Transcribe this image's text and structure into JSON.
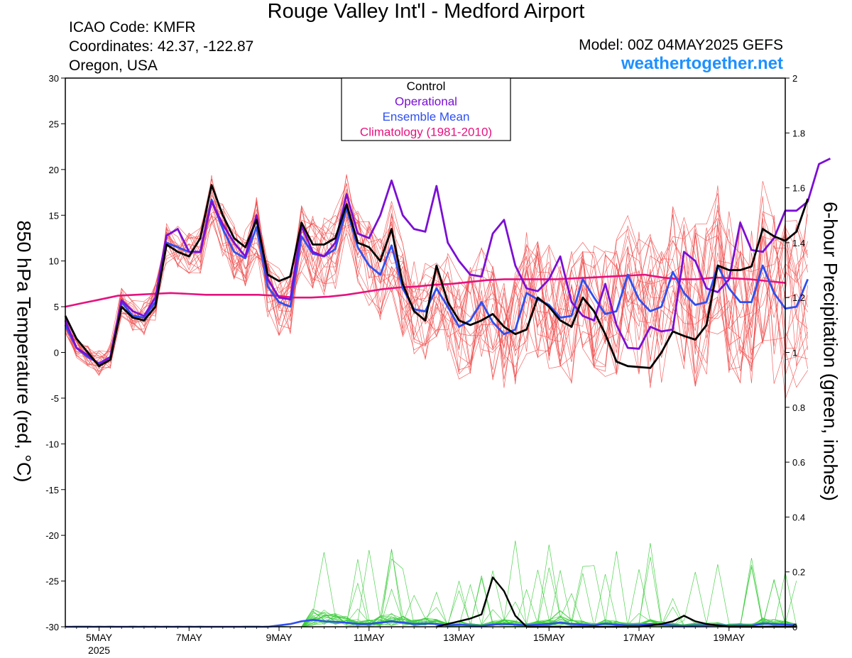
{
  "header": {
    "title": "Rouge Valley Int'l - Medford Airport",
    "icao": "ICAO Code: KMFR",
    "coordinates": "Coordinates: 42.37, -122.87",
    "region": "Oregon, USA",
    "model": "Model: 00Z 04MAY2025 GEFS",
    "site": "weathertogether.net"
  },
  "chart_data": {
    "type": "line",
    "title": "Rouge Valley Int'l - Medford Airport",
    "ylabel_left": "850 hPa Temperature (red, °C)",
    "ylabel_right": "6-hour Precipitation (green, inches)",
    "x_range_hours": [
      0,
      384
    ],
    "x_ticks": [
      {
        "label": "5MAY",
        "hour": 18
      },
      {
        "label": "7MAY",
        "hour": 66
      },
      {
        "label": "9MAY",
        "hour": 114
      },
      {
        "label": "11MAY",
        "hour": 162
      },
      {
        "label": "13MAY",
        "hour": 210
      },
      {
        "label": "15MAY",
        "hour": 258
      },
      {
        "label": "17MAY",
        "hour": 306
      },
      {
        "label": "19MAY",
        "hour": 354
      }
    ],
    "x_year_label": {
      "label": "2025",
      "hour": 18
    },
    "ylim_left": [
      -30,
      30
    ],
    "yticks_left": [
      30,
      25,
      20,
      15,
      10,
      5,
      0,
      -5,
      -10,
      -15,
      -20,
      -25,
      -30
    ],
    "ylim_right": [
      0,
      2
    ],
    "yticks_right": [
      "2",
      "1.8",
      "1.6",
      "1.4",
      "1.2",
      "1",
      "0.8",
      "0.6",
      "0.4",
      "0.2",
      "0"
    ],
    "legend": {
      "position": "top-center",
      "entries": [
        {
          "label": "Control",
          "color": "#000000"
        },
        {
          "label": "Operational",
          "color": "#7b0fd4"
        },
        {
          "label": "Ensemble Mean",
          "color": "#2e4ff0"
        },
        {
          "label": "Climatology (1981-2010)",
          "color": "#e5127e"
        }
      ]
    },
    "step_hours": 6,
    "temperature": {
      "control": [
        4,
        1.5,
        0,
        -1.5,
        -0.8,
        5,
        3.8,
        3.5,
        5,
        11.8,
        11,
        10.5,
        12.5,
        18.3,
        15,
        12.5,
        11.5,
        14.5,
        8.5,
        7.8,
        8.3,
        14.2,
        11.8,
        11.8,
        12.5,
        16.2,
        12,
        11.5,
        10,
        13.5,
        7.5,
        4.5,
        3.5,
        9.5,
        5.5,
        3.5,
        3,
        3.5,
        4.2,
        2.8,
        2,
        2.5,
        6,
        5,
        3.5,
        2.8,
        6,
        4.5,
        2,
        -1,
        -1.5,
        -1.6,
        -1.7,
        0,
        2.3,
        1.8,
        1.4,
        3,
        9.5,
        9,
        9,
        9.4,
        13.5,
        12.7,
        12.2,
        13.2,
        16.8
      ],
      "operational": [
        3.5,
        0.5,
        -0.3,
        -1.3,
        -0.5,
        5.7,
        4.5,
        4,
        6,
        12.8,
        13.5,
        11,
        11,
        16.5,
        14,
        12,
        10.5,
        15,
        8,
        6,
        5.8,
        13.8,
        11,
        10.5,
        12,
        17.3,
        13,
        12.5,
        15,
        18.8,
        15,
        13.5,
        13.2,
        18.2,
        12,
        10,
        8.5,
        8.3,
        13,
        14.5,
        9.5,
        7,
        6.7,
        8,
        10.5,
        5.5,
        4,
        3.5,
        7.5,
        3,
        0.5,
        0.4,
        2.8,
        2.3,
        2.5,
        11,
        10,
        7,
        6.6,
        8,
        14.2,
        11.2,
        11,
        12.5,
        15.5,
        15.5,
        16.5,
        20.6,
        21.2
      ],
      "mean": [
        3,
        0.5,
        -0.5,
        -1.2,
        -0.5,
        5.5,
        4,
        3.8,
        5.5,
        12,
        11.5,
        11,
        11,
        16.7,
        13.5,
        11,
        10.3,
        13.7,
        7.2,
        5.5,
        5,
        12.7,
        10.8,
        10.5,
        11.3,
        15.8,
        11.5,
        9.5,
        8.5,
        11.7,
        7,
        4.7,
        4.5,
        7,
        5,
        2.8,
        3.5,
        5.5,
        3.3,
        2,
        2.5,
        6.5,
        5.8,
        5.2,
        3.8,
        4,
        8,
        6,
        4.2,
        4.5,
        8.5,
        5.8,
        4.5,
        5,
        8.8,
        6.5,
        5.2,
        5.5,
        9.5,
        7,
        5.5,
        5.5,
        9.5,
        6.5,
        4.8,
        5,
        8
      ]
    },
    "precipitation": {
      "control_start_hour": 198,
      "control": [
        0,
        0.01,
        0.02,
        0.03,
        0.045,
        0.18,
        0.13,
        0.04,
        0,
        0,
        0,
        0,
        0,
        0,
        0,
        0,
        0,
        0,
        0,
        0.005,
        0.01,
        0.02,
        0.04,
        0.02,
        0.01,
        0.005,
        0,
        0,
        0,
        0,
        0,
        0,
        0
      ],
      "mean": [
        0,
        0,
        0,
        0,
        0,
        0,
        0,
        0,
        0,
        0,
        0,
        0,
        0,
        0,
        0,
        0,
        0,
        0,
        0,
        0.005,
        0.01,
        0.02,
        0.025,
        0.02,
        0.018,
        0.015,
        0.01,
        0.01,
        0.015,
        0.02,
        0.015,
        0.01,
        0.012,
        0.01,
        0.005,
        0.008,
        0.005,
        0.003,
        0.008,
        0.01,
        0.008,
        0.005,
        0.008,
        0.01,
        0.015,
        0.01,
        0.008,
        0.005,
        0.012,
        0.008,
        0.005,
        0.006,
        0.01,
        0.008,
        0.005,
        0.003,
        0.005,
        0.005,
        0.006,
        0.004,
        0.005,
        0.004,
        0.012,
        0.01,
        0.008,
        0.005
      ]
    },
    "climatology": [
      5,
      5.4,
      5.8,
      6.2,
      6.3,
      6.4,
      6.5,
      6.4,
      6.3,
      6.3,
      6.3,
      6.3,
      6.2,
      6,
      6,
      6.1,
      6.3,
      6.6,
      6.9,
      7.1,
      7.2,
      7.4,
      7.5,
      7.7,
      7.9,
      8,
      8,
      8,
      8,
      8.1,
      8.2,
      8.3,
      8.4,
      8.5,
      8.2,
      8,
      8,
      8.2,
      8.1,
      8,
      7.8,
      7.6
    ]
  }
}
